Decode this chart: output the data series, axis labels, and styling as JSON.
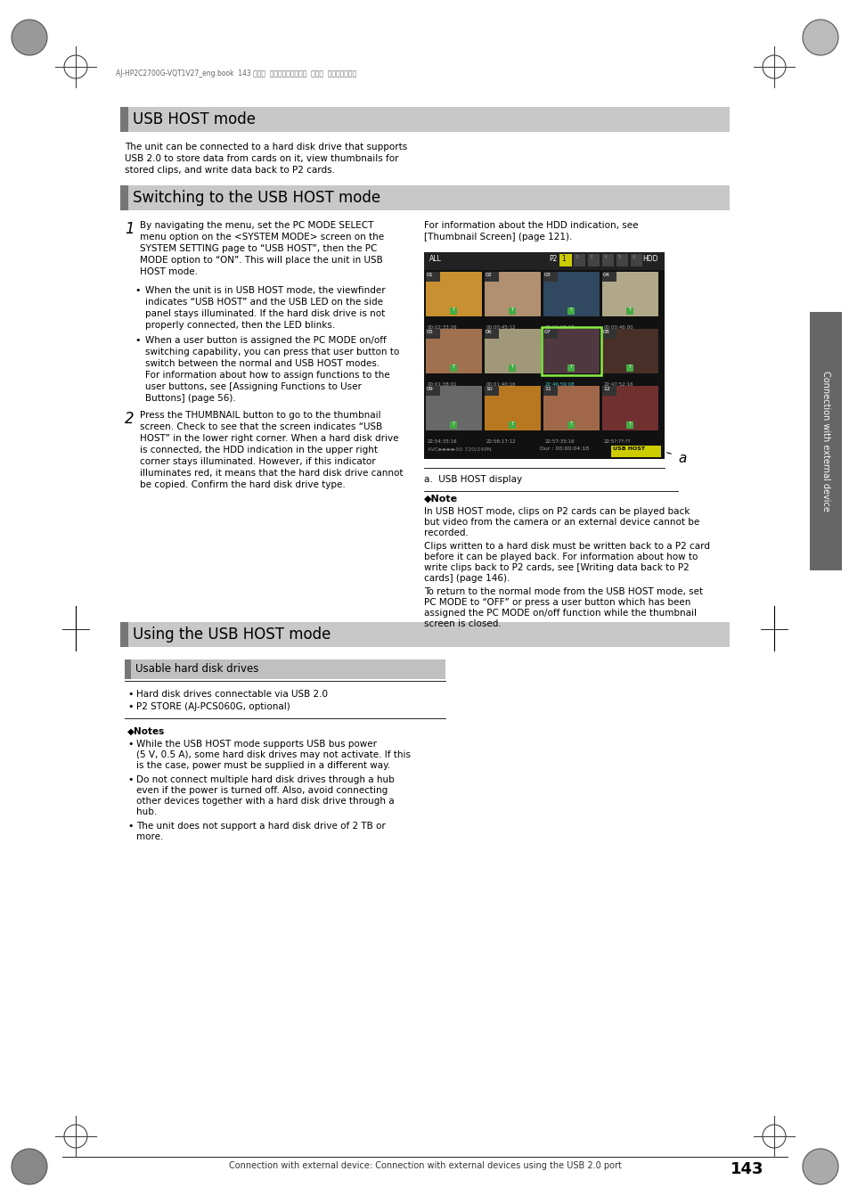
{
  "page_bg": "#ffffff",
  "header_text": "AJ-HP2C2700G-VQT1V27_eng.book  143 ページ  ２００８年９月２日  火曜日  午後５晎４３分",
  "section1_title": "USB HOST mode",
  "section2_title": "Switching to the USB HOST mode",
  "step1_text_line1": "By navigating the menu, set the PC MODE SELECT",
  "step1_text_line2": "menu option on the <SYSTEM MODE> screen on the",
  "step1_text_line3": "SYSTEM SETTING page to “USB HOST”, then the PC",
  "step1_text_line4": "MODE option to “ON”. This will place the unit in USB",
  "step1_text_line5": "HOST mode.",
  "bullet1_lines": [
    "When the unit is in USB HOST mode, the viewfinder",
    "indicates “USB HOST” and the USB LED on the side",
    "panel stays illuminated. If the hard disk drive is not",
    "properly connected, then the LED blinks."
  ],
  "bullet2_lines": [
    "When a user button is assigned the PC MODE on/off",
    "switching capability, you can press that user button to",
    "switch between the normal and USB HOST modes.",
    "For information about how to assign functions to the",
    "user buttons, see [Assigning Functions to User",
    "Buttons] (page 56)."
  ],
  "right_text1": "For information about the HDD indication, see",
  "right_text2": "[Thumbnail Screen] (page 121).",
  "step2_text_lines": [
    "Press the THUMBNAIL button to go to the thumbnail",
    "screen. Check to see that the screen indicates “USB",
    "HOST” in the lower right corner. When a hard disk drive",
    "is connected, the HDD indication in the upper right",
    "corner stays illuminated. However, if this indicator",
    "illuminates red, it means that the hard disk drive cannot",
    "be copied. Confirm the hard disk drive type."
  ],
  "caption_label": "a",
  "caption_text": "a.  USB HOST display",
  "note_title": "◆Note",
  "note_p1_lines": [
    "In USB HOST mode, clips on P2 cards can be played back",
    "but video from the camera or an external device cannot be",
    "recorded."
  ],
  "note_p2_lines": [
    "Clips written to a hard disk must be written back to a P2 card",
    "before it can be played back. For information about how to",
    "write clips back to P2 cards, see [Writing data back to P2",
    "cards] (page 146)."
  ],
  "note_p3_lines": [
    "To return to the normal mode from the USB HOST mode, set",
    "PC MODE to “OFF” or press a user button which has been",
    "assigned the PC MODE on/off function while the thumbnail",
    "screen is closed."
  ],
  "section3_title": "Using the USB HOST mode",
  "subsection_title": "Usable hard disk drives",
  "usable_lines": [
    "Hard disk drives connectable via USB 2.0",
    "P2 STORE (AJ-PCS060G, optional)"
  ],
  "notes2_title": "◆Notes",
  "notes2_b1_lines": [
    "While the USB HOST mode supports USB bus power",
    "(5 V, 0.5 A), some hard disk drives may not activate. If this",
    "is the case, power must be supplied in a different way."
  ],
  "notes2_b2_lines": [
    "Do not connect multiple hard disk drives through a hub",
    "even if the power is turned off. Also, avoid connecting",
    "other devices together with a hard disk drive through a",
    "hub."
  ],
  "notes2_b3_lines": [
    "The unit does not support a hard disk drive of 2 TB or",
    "more."
  ],
  "footer_text": "Connection with external device: Connection with external devices using the USB 2.0 port",
  "footer_page": "143",
  "sidebar_text": "Connection with external device",
  "section1_body_lines": [
    "The unit can be connected to a hard disk drive that supports",
    "USB 2.0 to store data from cards on it, view thumbnails for",
    "stored clips, and write data back to P2 cards."
  ]
}
